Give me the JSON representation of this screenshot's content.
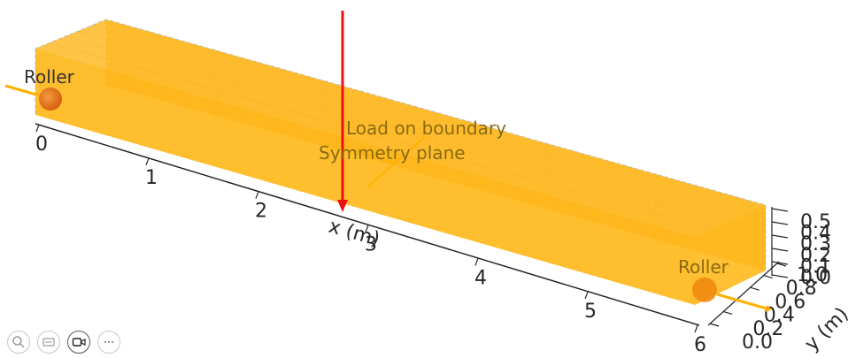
{
  "colors": {
    "beam_fill": "#FFB000",
    "beam_edge": "#E39A00",
    "support": "#E06A10",
    "load_arrow": "#EE1111",
    "axis": "#262626",
    "grid": "#cfcfcf"
  },
  "chart_data": {
    "type": "3d-beam",
    "axes": {
      "x": {
        "label": "x (m)",
        "ticks": [
          "0",
          "1",
          "2",
          "3",
          "4",
          "5",
          "6"
        ]
      },
      "y": {
        "label": "y (m)",
        "ticks": [
          "0.0",
          "0.2",
          "0.4",
          "0.6",
          "0.8",
          "1.0"
        ]
      },
      "z": {
        "ticks": [
          "0.0",
          "0.1",
          "0.2",
          "0.3",
          "0.4",
          "0.5"
        ]
      }
    },
    "annotations": {
      "roller_left": "Roller",
      "roller_right": "Roller",
      "load": "Load on boundary",
      "symmetry": "Symmetry plane"
    },
    "supports": [
      {
        "type": "roller",
        "x": 0
      },
      {
        "type": "roller",
        "x": 6
      }
    ],
    "load": {
      "x": 3
    }
  },
  "toolbar": {
    "icons": [
      "zoom-icon",
      "pan-icon",
      "camera-icon",
      "more-icon"
    ]
  }
}
